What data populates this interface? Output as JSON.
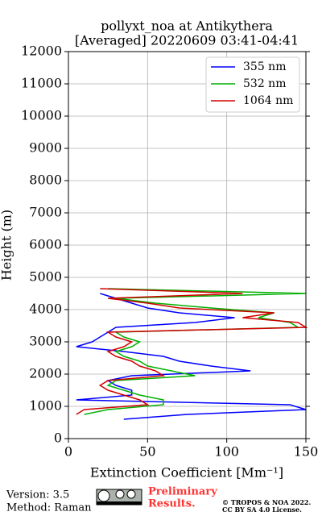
{
  "chart_data": {
    "type": "line",
    "title": "pollyxt_noa at Antikythera",
    "subtitle": "[Averaged] 20220609 03:41-04:41",
    "x_label": "Extinction Coefficient [Mm⁻¹]",
    "y_label": "Height (m)",
    "y": [
      600,
      750,
      900,
      1050,
      1200,
      1350,
      1500,
      1650,
      1800,
      1950,
      2100,
      2250,
      2400,
      2550,
      2700,
      2850,
      3000,
      3150,
      3300,
      3450,
      3600,
      3750,
      3900,
      4050,
      4200,
      4350,
      4500,
      4650
    ],
    "series": [
      {
        "name": "355 nm",
        "color": "#0000ff",
        "values": [
          35,
          75,
          150,
          140,
          5,
          40,
          40,
          30,
          25,
          40,
          115,
          90,
          70,
          60,
          35,
          5,
          15,
          20,
          25,
          30,
          80,
          105,
          70,
          50,
          40,
          30,
          20,
          null
        ]
      },
      {
        "name": "532 nm",
        "color": "#00b000",
        "values": [
          null,
          10,
          25,
          60,
          60,
          45,
          35,
          25,
          30,
          80,
          65,
          50,
          45,
          35,
          30,
          40,
          45,
          35,
          30,
          145,
          140,
          120,
          130,
          90,
          55,
          30,
          150,
          25
        ]
      },
      {
        "name": "1064 nm",
        "color": "#d00000",
        "values": [
          null,
          5,
          10,
          50,
          45,
          35,
          25,
          20,
          25,
          60,
          55,
          45,
          40,
          30,
          25,
          35,
          40,
          30,
          25,
          150,
          145,
          110,
          130,
          70,
          50,
          25,
          110,
          20
        ]
      }
    ],
    "xlim": [
      0,
      150
    ],
    "xticks": [
      0,
      50,
      100,
      150
    ],
    "ylim": [
      0,
      12000
    ],
    "yticks": [
      0,
      1000,
      2000,
      3000,
      4000,
      5000,
      6000,
      7000,
      8000,
      9000,
      10000,
      11000,
      12000
    ],
    "grid": true,
    "legend": "upper right"
  },
  "footer": {
    "version": "Version: 3.5",
    "method": "Method: Raman",
    "notice": [
      "Preliminary",
      "Results."
    ],
    "license": [
      "© TROPOS & NOA 2022.",
      "CC BY SA 4.0 License."
    ]
  }
}
